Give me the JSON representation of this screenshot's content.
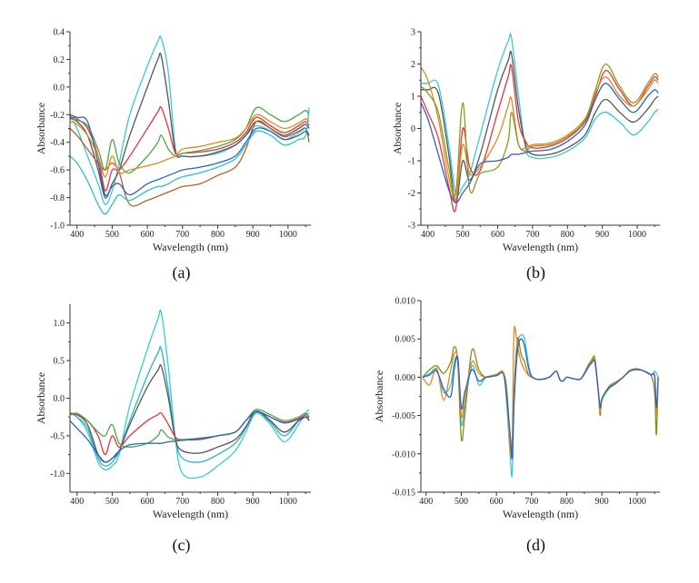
{
  "chart_data": [
    {
      "type": "line",
      "panel_label": "(a)",
      "xlabel": "Wavelength (nm)",
      "ylabel": "Absorbance",
      "xlim": [
        380,
        1065
      ],
      "ylim": [
        -1.0,
        0.4
      ],
      "xticks": [
        400,
        500,
        600,
        700,
        800,
        900,
        1000
      ],
      "yticks": [
        "0.4",
        "0.2",
        "0.0",
        "-0.2",
        "-0.4",
        "-0.6",
        "-0.8",
        "-1.0"
      ],
      "x": [
        380,
        400,
        430,
        460,
        480,
        500,
        520,
        550,
        600,
        630,
        640,
        660,
        680,
        700,
        750,
        800,
        850,
        880,
        910,
        950,
        990,
        1030,
        1050,
        1060
      ],
      "series": [
        {
          "color": "#3cc8d8",
          "values": [
            -0.2,
            -0.3,
            -0.5,
            -0.7,
            -0.85,
            -0.75,
            -0.55,
            -0.2,
            0.15,
            0.33,
            0.35,
            0.1,
            -0.45,
            -0.5,
            -0.5,
            -0.48,
            -0.42,
            -0.35,
            -0.28,
            -0.32,
            -0.38,
            -0.33,
            -0.3,
            -0.35
          ]
        },
        {
          "color": "#555555",
          "values": [
            -0.22,
            -0.25,
            -0.35,
            -0.6,
            -0.8,
            -0.7,
            -0.6,
            -0.35,
            0.0,
            0.2,
            0.22,
            -0.1,
            -0.47,
            -0.5,
            -0.5,
            -0.47,
            -0.42,
            -0.35,
            -0.25,
            -0.3,
            -0.35,
            -0.3,
            -0.27,
            -0.3
          ]
        },
        {
          "color": "#e8343c",
          "values": [
            -0.22,
            -0.23,
            -0.3,
            -0.5,
            -0.75,
            -0.6,
            -0.6,
            -0.5,
            -0.3,
            -0.18,
            -0.15,
            -0.3,
            -0.48,
            -0.48,
            -0.47,
            -0.45,
            -0.4,
            -0.33,
            -0.22,
            -0.28,
            -0.33,
            -0.28,
            -0.25,
            -0.28
          ]
        },
        {
          "color": "#4aa84a",
          "values": [
            -0.23,
            -0.24,
            -0.28,
            -0.45,
            -0.6,
            -0.38,
            -0.55,
            -0.62,
            -0.5,
            -0.4,
            -0.35,
            -0.45,
            -0.5,
            -0.48,
            -0.46,
            -0.43,
            -0.38,
            -0.3,
            -0.15,
            -0.2,
            -0.25,
            -0.2,
            -0.17,
            -0.2
          ]
        },
        {
          "color": "#b5651d",
          "values": [
            -0.3,
            -0.35,
            -0.45,
            -0.55,
            -0.6,
            -0.55,
            -0.62,
            -0.85,
            -0.82,
            -0.79,
            -0.78,
            -0.76,
            -0.74,
            -0.72,
            -0.7,
            -0.64,
            -0.58,
            -0.45,
            -0.25,
            -0.3,
            -0.36,
            -0.32,
            -0.3,
            -0.4
          ]
        },
        {
          "color": "#2fc0d0",
          "values": [
            -0.5,
            -0.55,
            -0.68,
            -0.85,
            -0.92,
            -0.85,
            -0.78,
            -0.82,
            -0.75,
            -0.72,
            -0.72,
            -0.7,
            -0.67,
            -0.65,
            -0.62,
            -0.58,
            -0.52,
            -0.42,
            -0.32,
            -0.35,
            -0.42,
            -0.38,
            -0.35,
            -0.15
          ]
        },
        {
          "color": "#3060c0",
          "values": [
            -0.2,
            -0.22,
            -0.25,
            -0.55,
            -0.78,
            -0.72,
            -0.7,
            -0.78,
            -0.7,
            -0.67,
            -0.66,
            -0.64,
            -0.62,
            -0.6,
            -0.58,
            -0.55,
            -0.5,
            -0.4,
            -0.3,
            -0.32,
            -0.38,
            -0.35,
            -0.32,
            -0.35
          ]
        },
        {
          "color": "#e08a20",
          "values": [
            -0.25,
            -0.27,
            -0.35,
            -0.5,
            -0.65,
            -0.5,
            -0.62,
            -0.6,
            -0.57,
            -0.55,
            -0.54,
            -0.52,
            -0.5,
            -0.45,
            -0.43,
            -0.4,
            -0.37,
            -0.3,
            -0.2,
            -0.25,
            -0.3,
            -0.26,
            -0.23,
            -0.25
          ]
        }
      ]
    },
    {
      "type": "line",
      "panel_label": "(b)",
      "xlabel": "Wavelength (nm)",
      "ylabel": "Absorbance",
      "xlim": [
        380,
        1065
      ],
      "ylim": [
        -3,
        3
      ],
      "xticks": [
        400,
        500,
        600,
        700,
        800,
        900,
        1000
      ],
      "yticks": [
        "3",
        "2",
        "1",
        "0",
        "-1",
        "-2",
        "-3"
      ],
      "x": [
        380,
        400,
        430,
        460,
        480,
        500,
        520,
        550,
        600,
        630,
        640,
        660,
        680,
        700,
        750,
        800,
        850,
        880,
        910,
        950,
        990,
        1030,
        1050,
        1060
      ],
      "series": [
        {
          "color": "#3cc8d8",
          "values": [
            1.4,
            1.4,
            1.35,
            -0.5,
            -2.0,
            -1.8,
            -1.4,
            -0.2,
            1.8,
            2.7,
            2.8,
            1.0,
            -0.6,
            -0.9,
            -0.9,
            -0.7,
            -0.3,
            0.3,
            0.5,
            0.2,
            -0.2,
            0.2,
            0.5,
            0.6
          ]
        },
        {
          "color": "#555555",
          "values": [
            1.2,
            1.2,
            1.1,
            -0.8,
            -2.3,
            -1.0,
            -1.6,
            -0.8,
            1.2,
            2.1,
            2.3,
            0.6,
            -0.5,
            -0.8,
            -0.8,
            -0.6,
            -0.2,
            0.5,
            0.9,
            0.5,
            0.2,
            0.6,
            0.9,
            1.0
          ]
        },
        {
          "color": "#e8343c",
          "values": [
            1.0,
            0.5,
            -0.3,
            -1.8,
            -2.5,
            0.0,
            -1.2,
            -1.3,
            0.5,
            1.6,
            1.9,
            0.2,
            -0.4,
            -0.6,
            -0.55,
            -0.3,
            0.2,
            1.0,
            1.8,
            1.2,
            0.7,
            1.3,
            1.6,
            1.5
          ]
        },
        {
          "color": "#e08a20",
          "values": [
            1.9,
            1.5,
            0.3,
            -1.5,
            -2.2,
            -0.5,
            -1.4,
            -1.2,
            -0.3,
            0.7,
            0.9,
            -0.5,
            -0.6,
            -0.5,
            -0.45,
            -0.2,
            0.3,
            1.1,
            1.6,
            1.0,
            0.7,
            1.2,
            1.5,
            1.4
          ]
        },
        {
          "color": "#8a9a20",
          "values": [
            1.3,
            1.1,
            0.5,
            -1.2,
            -2.0,
            0.8,
            -1.9,
            -1.4,
            -1.2,
            -0.4,
            0.5,
            -0.5,
            -0.7,
            -0.55,
            -0.5,
            -0.25,
            0.25,
            1.2,
            2.0,
            1.3,
            0.8,
            1.4,
            1.7,
            1.6
          ]
        },
        {
          "color": "#3060c0",
          "values": [
            0.8,
            0.3,
            -0.8,
            -1.9,
            -2.3,
            -2.0,
            -1.7,
            -1.1,
            -1.0,
            -0.9,
            -0.8,
            -0.8,
            -0.75,
            -0.7,
            -0.65,
            -0.4,
            0.1,
            0.9,
            1.4,
            0.9,
            0.5,
            1.0,
            1.2,
            1.1
          ]
        }
      ]
    },
    {
      "type": "line",
      "panel_label": "(c)",
      "xlabel": "Wavelength (nm)",
      "ylabel": "Absorbance",
      "xlim": [
        380,
        1065
      ],
      "ylim": [
        -1.25,
        1.25
      ],
      "xticks": [
        400,
        500,
        600,
        700,
        800,
        900,
        1000
      ],
      "yticks": [
        "1.0",
        "0.5",
        "0.0",
        "-0.5",
        "-1.0"
      ],
      "x": [
        380,
        400,
        430,
        460,
        480,
        500,
        520,
        550,
        600,
        630,
        640,
        660,
        680,
        700,
        750,
        800,
        850,
        880,
        910,
        950,
        990,
        1030,
        1050,
        1060
      ],
      "series": [
        {
          "color": "#3cc8d8",
          "values": [
            -0.2,
            -0.25,
            -0.45,
            -0.85,
            -0.95,
            -0.9,
            -0.75,
            -0.1,
            0.65,
            1.05,
            1.13,
            0.4,
            -0.55,
            -1.0,
            -1.05,
            -0.9,
            -0.7,
            -0.45,
            -0.2,
            -0.35,
            -0.58,
            -0.35,
            -0.2,
            -0.15
          ]
        },
        {
          "color": "#2ab0c8",
          "values": [
            -0.2,
            -0.25,
            -0.4,
            -0.8,
            -0.9,
            -0.85,
            -0.7,
            -0.3,
            0.3,
            0.6,
            0.65,
            0.1,
            -0.55,
            -0.8,
            -0.85,
            -0.75,
            -0.6,
            -0.4,
            -0.18,
            -0.32,
            -0.5,
            -0.3,
            -0.22,
            -0.2
          ]
        },
        {
          "color": "#555555",
          "values": [
            -0.2,
            -0.22,
            -0.35,
            -0.75,
            -0.85,
            -0.8,
            -0.7,
            -0.35,
            0.15,
            0.37,
            0.42,
            0.0,
            -0.55,
            -0.7,
            -0.73,
            -0.65,
            -0.55,
            -0.38,
            -0.17,
            -0.3,
            -0.45,
            -0.3,
            -0.25,
            -0.25
          ]
        },
        {
          "color": "#e8343c",
          "values": [
            -0.22,
            -0.22,
            -0.3,
            -0.5,
            -0.75,
            -0.5,
            -0.65,
            -0.5,
            -0.3,
            -0.22,
            -0.2,
            -0.35,
            -0.52,
            -0.55,
            -0.55,
            -0.5,
            -0.45,
            -0.3,
            -0.18,
            -0.25,
            -0.32,
            -0.27,
            -0.22,
            -0.25
          ]
        },
        {
          "color": "#4aa84a",
          "values": [
            -0.22,
            -0.2,
            -0.3,
            -0.45,
            -0.5,
            -0.35,
            -0.6,
            -0.65,
            -0.6,
            -0.5,
            -0.42,
            -0.52,
            -0.55,
            -0.55,
            -0.53,
            -0.5,
            -0.45,
            -0.3,
            -0.15,
            -0.22,
            -0.3,
            -0.25,
            -0.2,
            -0.3
          ]
        },
        {
          "color": "#3060c0",
          "values": [
            -0.3,
            -0.4,
            -0.55,
            -0.75,
            -0.85,
            -0.8,
            -0.7,
            -0.62,
            -0.6,
            -0.6,
            -0.6,
            -0.58,
            -0.57,
            -0.56,
            -0.54,
            -0.5,
            -0.45,
            -0.3,
            -0.18,
            -0.25,
            -0.33,
            -0.28,
            -0.25,
            -0.3
          ]
        }
      ]
    },
    {
      "type": "line",
      "panel_label": "(d)",
      "xlabel": "Wavelength (nm)",
      "ylabel": "Absorbance",
      "xlim": [
        385,
        1065
      ],
      "ylim": [
        -0.015,
        0.01
      ],
      "xticks": [
        400,
        500,
        600,
        700,
        800,
        900,
        1000
      ],
      "yticks": [
        "0.010",
        "0.005",
        "0.000",
        "-0.005",
        "-0.010",
        "-0.015"
      ],
      "x": [
        390,
        410,
        430,
        450,
        470,
        480,
        490,
        500,
        510,
        530,
        550,
        570,
        600,
        620,
        630,
        640,
        645,
        650,
        660,
        670,
        680,
        690,
        700,
        720,
        750,
        770,
        780,
        790,
        800,
        820,
        840,
        860,
        870,
        880,
        890,
        895,
        900,
        920,
        940,
        960,
        980,
        1000,
        1020,
        1040,
        1050,
        1055,
        1060
      ],
      "series": [
        {
          "color": "#3cc8d8",
          "values": [
            0,
            0.0005,
            0.001,
            -0.002,
            -0.001,
            0.002,
            0.002,
            -0.006,
            -0.004,
            0.0015,
            -0.001,
            0,
            0.0003,
            0.0005,
            -0.004,
            -0.011,
            -0.0125,
            -0.004,
            0.004,
            0.0055,
            0.005,
            0.002,
            0.0002,
            -0.0003,
            0,
            0.0008,
            -0.0003,
            -0.0005,
            0,
            -0.0002,
            -0.0002,
            0.0012,
            0.002,
            0.002,
            -0.002,
            -0.0045,
            -0.003,
            -0.0015,
            -0.0008,
            0,
            0.0008,
            0.001,
            0.0008,
            0.0003,
            0.0008,
            0.0005,
            0
          ]
        },
        {
          "color": "#8a8a20",
          "values": [
            0,
            0.001,
            0.0015,
            0.0005,
            0.002,
            0.004,
            0.002,
            -0.008,
            -0.005,
            0.0035,
            0.001,
            0,
            0.0003,
            0.0005,
            -0.002,
            -0.009,
            -0.01,
            -0.002,
            0.005,
            0.003,
            0.002,
            0.0005,
            0,
            -0.0003,
            0,
            0.0008,
            -0.0003,
            -0.0005,
            0,
            -0.0002,
            -0.0002,
            0.0015,
            0.0022,
            0.0025,
            -0.002,
            -0.005,
            -0.003,
            -0.0012,
            -0.0006,
            0,
            0.0009,
            0.0011,
            0.0008,
            0.0002,
            -0.002,
            -0.0075,
            0
          ]
        },
        {
          "color": "#e08a20",
          "values": [
            0,
            -0.001,
            0.0012,
            -0.003,
            0.001,
            0.003,
            0.0025,
            -0.005,
            -0.003,
            0.002,
            0.0005,
            0,
            0.0004,
            0.0006,
            -0.003,
            -0.01,
            -0.008,
            0.006,
            0.004,
            0.002,
            0.001,
            0.0003,
            0,
            -0.0003,
            0,
            0.0008,
            -0.0003,
            -0.0005,
            0,
            -0.0002,
            -0.0002,
            0.0013,
            0.002,
            0.0022,
            -0.002,
            -0.0045,
            -0.0028,
            -0.0013,
            -0.0007,
            0,
            0.0008,
            0.001,
            0.0008,
            0.0003,
            0,
            -0.005,
            0
          ]
        },
        {
          "color": "#3060c0",
          "values": [
            0,
            0.0003,
            0.0008,
            -0.0015,
            -0.0025,
            0.001,
            0.0025,
            -0.004,
            -0.002,
            0.001,
            -0.0005,
            0,
            0.0002,
            0.0004,
            -0.003,
            -0.008,
            -0.0105,
            -0.003,
            0.0035,
            0.005,
            0.004,
            0.0015,
            0.0001,
            -0.0003,
            0,
            0.0008,
            -0.0003,
            -0.0005,
            0,
            -0.0002,
            -0.0002,
            0.0012,
            0.0018,
            0.002,
            -0.0018,
            -0.004,
            -0.0028,
            -0.0014,
            -0.0008,
            0,
            0.0008,
            0.001,
            0.0008,
            0.0003,
            0.0002,
            -0.004,
            0
          ]
        }
      ]
    }
  ]
}
